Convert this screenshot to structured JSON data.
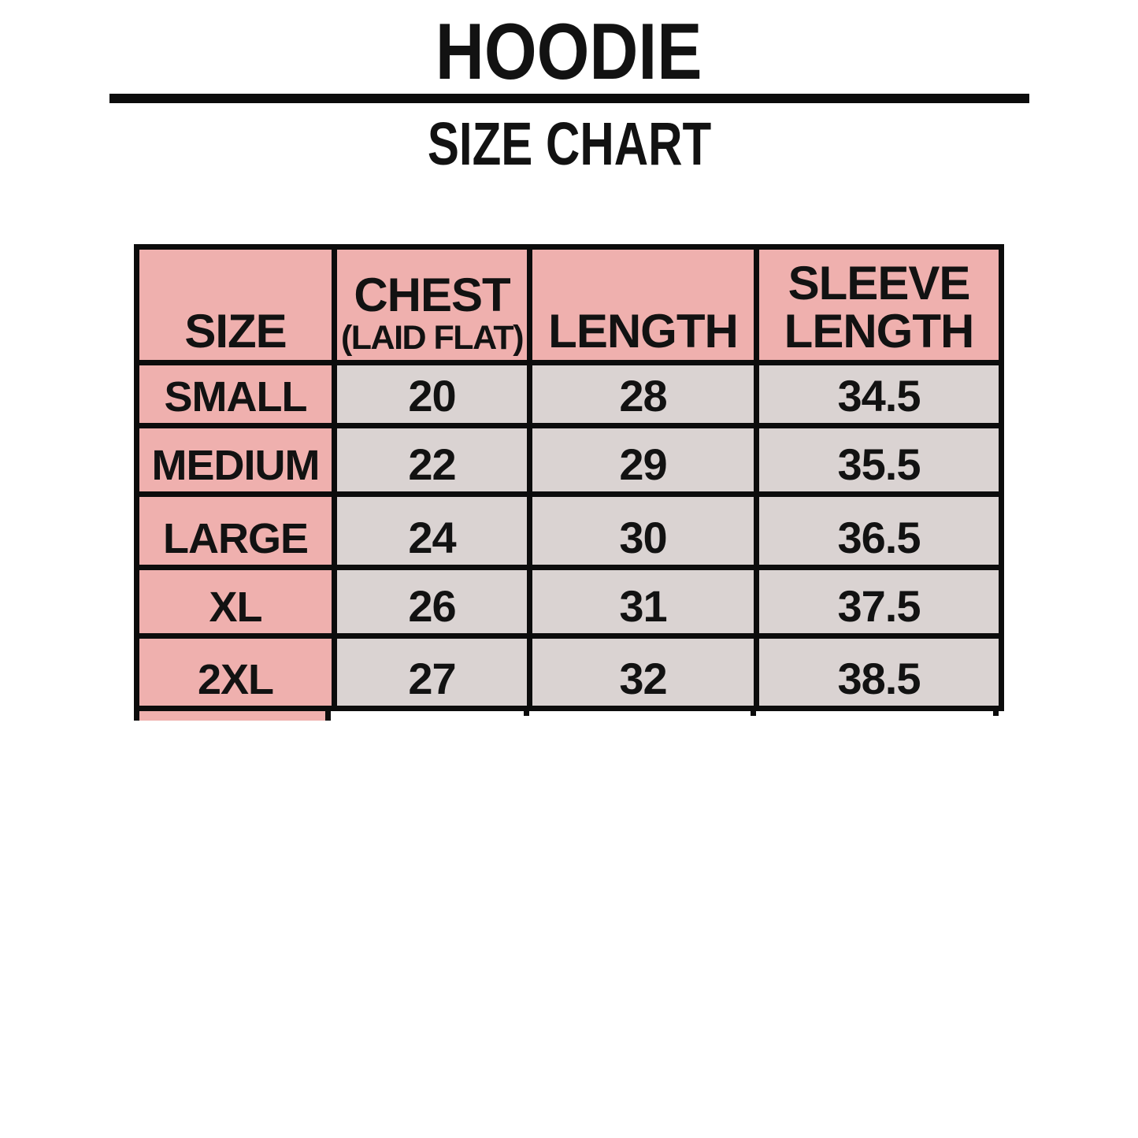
{
  "chart_data": {
    "type": "table",
    "title": "HOODIE",
    "subtitle": "SIZE CHART",
    "columns": [
      {
        "label": "SIZE",
        "sublabel": ""
      },
      {
        "label": "CHEST",
        "sublabel": "(LAID FLAT)"
      },
      {
        "label": "LENGTH",
        "sublabel": ""
      },
      {
        "label": "SLEEVE LENGTH",
        "sublabel": ""
      }
    ],
    "rows": [
      {
        "size": "SMALL",
        "chest": "20",
        "length": "28",
        "sleeve_length": "34.5"
      },
      {
        "size": "MEDIUM",
        "chest": "22",
        "length": "29",
        "sleeve_length": "35.5"
      },
      {
        "size": "LARGE",
        "chest": "24",
        "length": "30",
        "sleeve_length": "36.5"
      },
      {
        "size": "XL",
        "chest": "26",
        "length": "31",
        "sleeve_length": "37.5"
      },
      {
        "size": "2XL",
        "chest": "27",
        "length": "32",
        "sleeve_length": "38.5"
      }
    ],
    "layout": {
      "header_row_fill": "#efb0ae",
      "size_column_fill": "#efb0ae",
      "data_cell_fill": "#dad3d2",
      "border_color": "#0c0c0c",
      "background": "#ffffff",
      "text_color": "#121212",
      "note_partial_row_cut_off_at_bottom": true
    }
  }
}
